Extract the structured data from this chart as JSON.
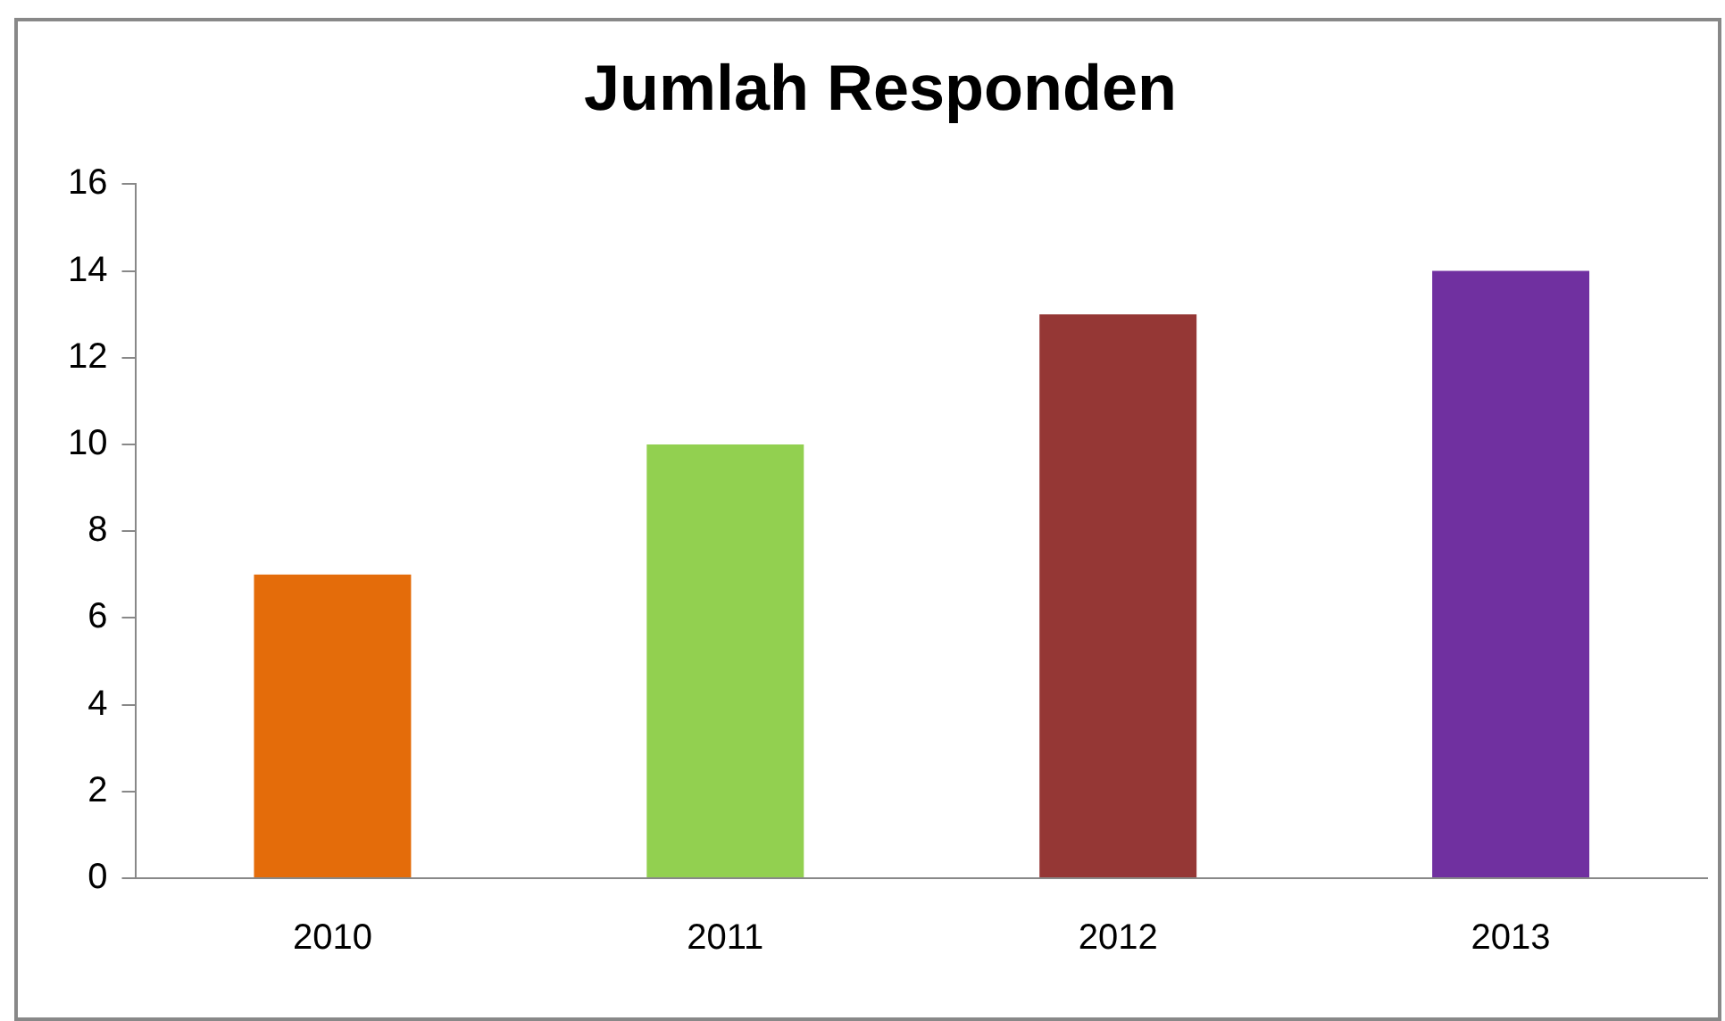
{
  "chart_data": {
    "type": "bar",
    "title": "Jumlah Responden",
    "categories": [
      "2010",
      "2011",
      "2012",
      "2013"
    ],
    "values": [
      7,
      10,
      13,
      14
    ],
    "colors": [
      "#e46c0a",
      "#92d050",
      "#953735",
      "#7030a0"
    ],
    "ylim": [
      0,
      16
    ],
    "yticks": [
      0,
      2,
      4,
      6,
      8,
      10,
      12,
      14,
      16
    ],
    "grid": false,
    "legend": false
  }
}
